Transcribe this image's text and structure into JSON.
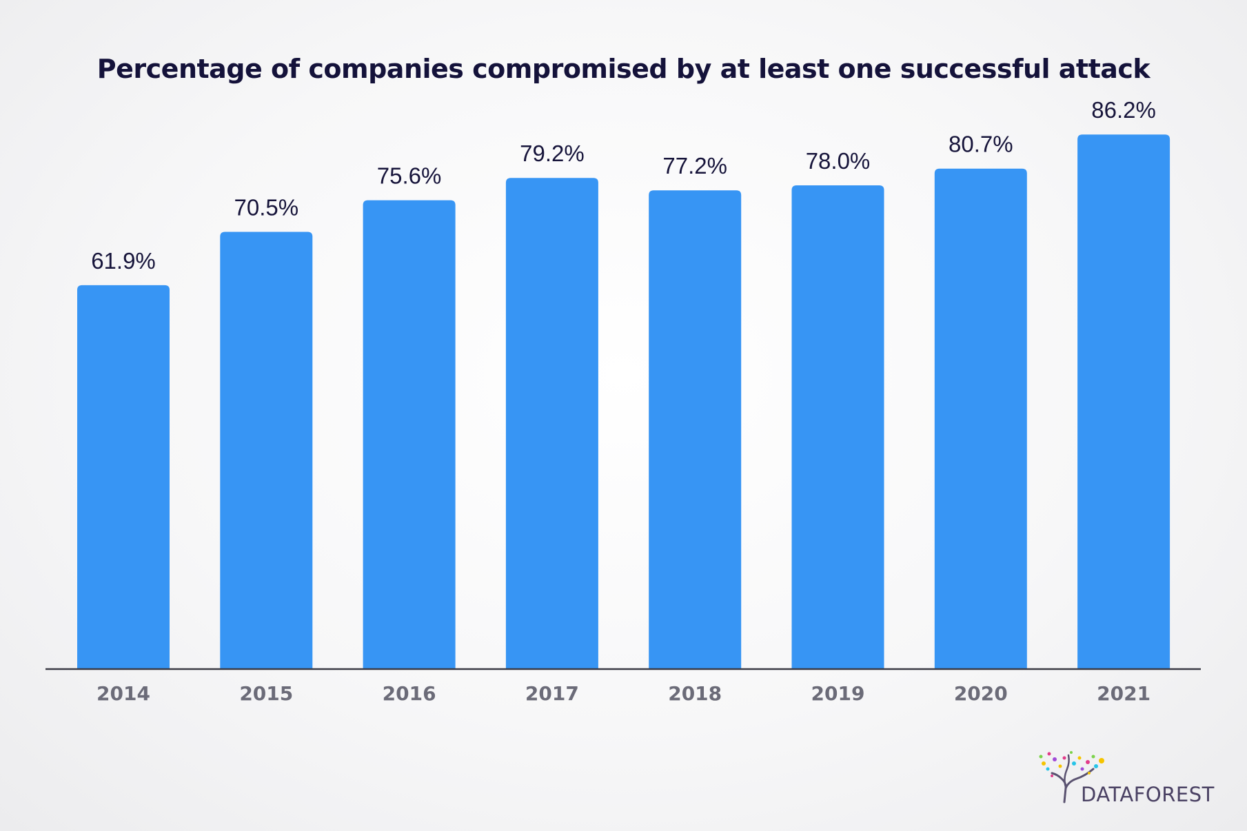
{
  "chart_data": {
    "type": "bar",
    "title": "Percentage of companies compromised by at least one successful attack",
    "xlabel": "",
    "ylabel": "",
    "categories": [
      "2014",
      "2015",
      "2016",
      "2017",
      "2018",
      "2019",
      "2020",
      "2021"
    ],
    "values": [
      61.9,
      70.5,
      75.6,
      79.2,
      77.2,
      78.0,
      80.7,
      86.2
    ],
    "value_labels": [
      "61.9%",
      "70.5%",
      "75.6%",
      "79.2%",
      "77.2%",
      "78.0%",
      "80.7%",
      "86.2%"
    ],
    "ylim": [
      0,
      100
    ],
    "grid": false,
    "bar_color": "#3795f4"
  },
  "brand": {
    "name": "DATAFOREST",
    "icon": "tree-logo-icon"
  }
}
